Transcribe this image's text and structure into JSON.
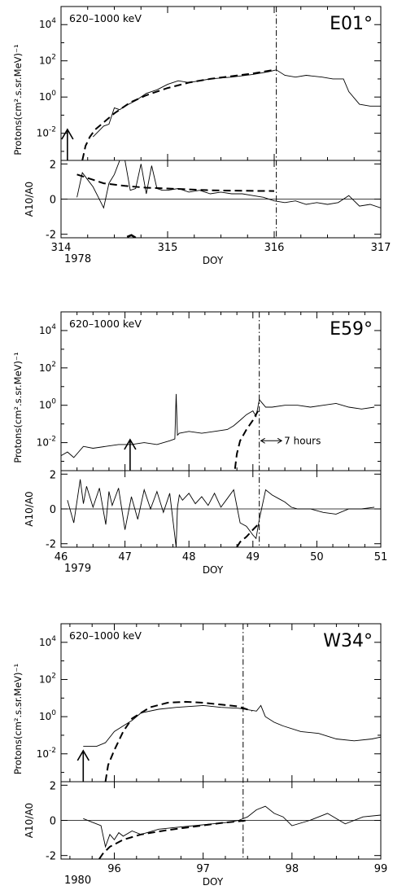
{
  "chart_data": [
    {
      "type": "line",
      "energy_label": "620–1000 keV",
      "location_label": "E01°",
      "ylabel_top": "Protons(cm².s.sr.MeV)⁻¹",
      "ylabel_bottom": "A10/A0",
      "xlabel": "DOY",
      "year_label": "1978",
      "xlim": [
        314,
        317
      ],
      "xticks": [
        "314",
        "315",
        "316",
        "317"
      ],
      "ylim_top_log10": [
        -3.5,
        5
      ],
      "yticks_top": [
        {
          "base": "10",
          "exp": "4",
          "log": 4
        },
        {
          "base": "10",
          "exp": "2",
          "log": 2
        },
        {
          "base": "10",
          "exp": "0",
          "log": 0
        },
        {
          "base": "10",
          "exp": "-2",
          "log": -2
        }
      ],
      "ylim_bottom": [
        -2.2,
        2.2
      ],
      "yticks_bottom": [
        "2",
        "0",
        "-2"
      ],
      "arrow_x": 314.06,
      "vline_x": 316.02,
      "observed_top": {
        "x": [
          314.3,
          314.35,
          314.4,
          314.45,
          314.5,
          314.55,
          314.6,
          314.7,
          314.8,
          314.9,
          315.0,
          315.1,
          315.2,
          315.4,
          315.6,
          315.8,
          315.95,
          316.02,
          316.1,
          316.2,
          316.3,
          316.45,
          316.55,
          316.65,
          316.7,
          316.8,
          316.9,
          317.0
        ],
        "y_log10": [
          -2.2,
          -1.9,
          -1.6,
          -1.5,
          -0.6,
          -0.7,
          -0.5,
          -0.2,
          0.2,
          0.4,
          0.7,
          0.9,
          0.8,
          1.0,
          1.1,
          1.25,
          1.4,
          1.5,
          1.2,
          1.1,
          1.2,
          1.1,
          1.0,
          1.0,
          0.3,
          -0.4,
          -0.5,
          -0.5
        ]
      },
      "model_top": {
        "x": [
          314.2,
          314.23,
          314.27,
          314.32,
          314.4,
          314.5,
          314.65,
          314.8,
          315.0,
          315.2,
          315.4,
          315.6,
          315.8,
          316.0
        ],
        "y_log10": [
          -3.5,
          -2.7,
          -2.2,
          -1.8,
          -1.4,
          -0.9,
          -0.3,
          0.1,
          0.5,
          0.8,
          1.0,
          1.15,
          1.3,
          1.5
        ]
      },
      "observed_bottom": {
        "x": [
          314.15,
          314.2,
          314.25,
          314.3,
          314.35,
          314.4,
          314.45,
          314.5,
          314.55,
          314.6,
          314.65,
          314.7,
          314.75,
          314.8,
          314.85,
          314.9,
          314.95,
          315.0,
          315.1,
          315.2,
          315.3,
          315.4,
          315.5,
          315.6,
          315.7,
          315.8,
          315.9,
          316.0,
          316.1,
          316.2,
          316.3,
          316.4,
          316.5,
          316.6,
          316.7,
          316.8,
          316.9,
          317.0
        ],
        "y": [
          0.1,
          1.5,
          1.1,
          0.7,
          0.1,
          -0.5,
          0.9,
          1.4,
          2.2,
          2.2,
          0.5,
          0.6,
          2.0,
          0.3,
          1.9,
          0.6,
          0.5,
          0.5,
          0.6,
          0.4,
          0.5,
          0.3,
          0.4,
          0.3,
          0.3,
          0.2,
          0.1,
          -0.1,
          -0.2,
          -0.1,
          -0.3,
          -0.2,
          -0.3,
          -0.2,
          0.2,
          -0.4,
          -0.3,
          -0.5
        ]
      },
      "model_bottom": {
        "x": [
          314.15,
          314.25,
          314.4,
          314.6,
          314.8,
          315.0,
          315.2,
          315.4,
          315.6,
          315.8,
          316.0
        ],
        "y": [
          1.4,
          1.2,
          0.9,
          0.75,
          0.65,
          0.6,
          0.55,
          0.5,
          0.48,
          0.47,
          0.46
        ]
      },
      "model_bottom_low": {
        "x": [
          314.62,
          314.66,
          314.7
        ],
        "y": [
          -2.15,
          -2.05,
          -2.2
        ]
      }
    },
    {
      "type": "line",
      "energy_label": "620–1000 keV",
      "location_label": "E59°",
      "ylabel_top": "Protons(cm².s.sr.MeV)⁻¹",
      "ylabel_bottom": "A10/A0",
      "xlabel": "DOY",
      "year_label": "1979",
      "xlim": [
        46,
        51
      ],
      "xticks": [
        "46",
        "47",
        "48",
        "49",
        "50",
        "51"
      ],
      "ylim_top_log10": [
        -3.5,
        5
      ],
      "yticks_top": [
        {
          "base": "10",
          "exp": "4",
          "log": 4
        },
        {
          "base": "10",
          "exp": "2",
          "log": 2
        },
        {
          "base": "10",
          "exp": "0",
          "log": 0
        },
        {
          "base": "10",
          "exp": "-2",
          "log": -2
        }
      ],
      "ylim_bottom": [
        -2.2,
        2.2
      ],
      "yticks_bottom": [
        "2",
        "0",
        "-2"
      ],
      "arrow_x": 47.08,
      "vline_x": 49.1,
      "annotation": "7 hours",
      "annotation_x": [
        49.1,
        49.45
      ],
      "observed_top": {
        "x": [
          46.0,
          46.1,
          46.2,
          46.35,
          46.5,
          46.7,
          46.9,
          47.1,
          47.3,
          47.5,
          47.7,
          47.78,
          47.8,
          47.82,
          47.85,
          48.0,
          48.2,
          48.4,
          48.6,
          48.7,
          48.8,
          48.9,
          49.0,
          49.05,
          49.1,
          49.2,
          49.3,
          49.5,
          49.7,
          49.9,
          50.1,
          50.3,
          50.5,
          50.7,
          50.9
        ],
        "y_log10": [
          -2.7,
          -2.5,
          -2.8,
          -2.2,
          -2.3,
          -2.2,
          -2.1,
          -2.1,
          -2.0,
          -2.1,
          -1.9,
          -1.8,
          0.6,
          -1.6,
          -1.5,
          -1.4,
          -1.5,
          -1.4,
          -1.3,
          -1.1,
          -0.8,
          -0.5,
          -0.3,
          -0.6,
          0.3,
          -0.1,
          -0.1,
          0.0,
          0.0,
          -0.1,
          0.0,
          0.1,
          -0.1,
          -0.2,
          -0.1
        ]
      },
      "model_top": {
        "x": [
          48.72,
          48.75,
          48.8,
          48.9,
          49.0,
          49.08
        ],
        "y_log10": [
          -3.4,
          -2.6,
          -1.9,
          -1.3,
          -0.8,
          -0.3
        ]
      },
      "observed_bottom": {
        "x": [
          46.1,
          46.2,
          46.3,
          46.35,
          46.4,
          46.5,
          46.6,
          46.7,
          46.75,
          46.8,
          46.9,
          47.0,
          47.1,
          47.2,
          47.3,
          47.4,
          47.5,
          47.6,
          47.7,
          47.8,
          47.82,
          47.85,
          47.9,
          48.0,
          48.1,
          48.2,
          48.3,
          48.4,
          48.5,
          48.6,
          48.7,
          48.8,
          48.9,
          49.0,
          49.05,
          49.1,
          49.2,
          49.3,
          49.4,
          49.5,
          49.6,
          49.7,
          49.9,
          50.1,
          50.3,
          50.5,
          50.7,
          50.9
        ],
        "y": [
          0.5,
          -0.8,
          1.7,
          0.3,
          1.3,
          0.1,
          1.2,
          -0.9,
          1.0,
          0.2,
          1.2,
          -1.2,
          0.7,
          -0.6,
          1.1,
          0.0,
          1.0,
          -0.2,
          0.9,
          -2.2,
          0.1,
          0.8,
          0.5,
          0.9,
          0.3,
          0.7,
          0.2,
          0.9,
          0.1,
          0.6,
          1.1,
          -0.8,
          -1.0,
          -1.5,
          -1.7,
          -0.6,
          1.1,
          0.8,
          0.6,
          0.4,
          0.1,
          0.0,
          0.0,
          -0.2,
          -0.3,
          0.0,
          0.0,
          0.1
        ]
      },
      "model_bottom": {
        "x": [
          48.75,
          48.8,
          48.9,
          49.0,
          49.08
        ],
        "y": [
          -2.2,
          -1.9,
          -1.6,
          -1.2,
          -0.9
        ]
      },
      "model_bottom_low": {
        "x": [],
        "y": []
      }
    },
    {
      "type": "line",
      "energy_label": "620–1000 keV",
      "location_label": "W34°",
      "ylabel_top": "Protons(cm².s.sr.MeV)⁻¹",
      "ylabel_bottom": "A10/A0",
      "xlabel": "DOY",
      "year_label": "1980",
      "xlim": [
        95.4,
        99
      ],
      "xticks": [
        "96",
        "97",
        "98",
        "99"
      ],
      "xtick_values": [
        96,
        97,
        98,
        99
      ],
      "ylim_top_log10": [
        -3.5,
        5
      ],
      "yticks_top": [
        {
          "base": "10",
          "exp": "4",
          "log": 4
        },
        {
          "base": "10",
          "exp": "2",
          "log": 2
        },
        {
          "base": "10",
          "exp": "0",
          "log": 0
        },
        {
          "base": "10",
          "exp": "-2",
          "log": -2
        }
      ],
      "ylim_bottom": [
        -2.2,
        2.2
      ],
      "yticks_bottom": [
        "2",
        "0",
        "-2"
      ],
      "arrow_x": 95.65,
      "vline_x": 97.45,
      "observed_top": {
        "x": [
          95.65,
          95.8,
          95.9,
          96.0,
          96.1,
          96.2,
          96.3,
          96.5,
          96.7,
          97.0,
          97.2,
          97.4,
          97.6,
          97.65,
          97.7,
          97.8,
          97.9,
          98.1,
          98.3,
          98.5,
          98.7,
          98.9,
          99.0
        ],
        "y_log10": [
          -1.6,
          -1.6,
          -1.4,
          -0.8,
          -0.5,
          -0.2,
          0.2,
          0.4,
          0.5,
          0.6,
          0.5,
          0.45,
          0.3,
          0.6,
          0.0,
          -0.3,
          -0.5,
          -0.8,
          -0.9,
          -1.2,
          -1.3,
          -1.2,
          -1.1
        ]
      },
      "model_top": {
        "x": [
          95.9,
          95.93,
          96.0,
          96.1,
          96.2,
          96.4,
          96.6,
          96.8,
          97.0,
          97.2,
          97.4,
          97.55
        ],
        "y_log10": [
          -3.5,
          -2.6,
          -1.8,
          -0.8,
          -0.1,
          0.5,
          0.75,
          0.8,
          0.75,
          0.65,
          0.55,
          0.3
        ]
      },
      "observed_bottom": {
        "x": [
          95.65,
          95.75,
          95.85,
          95.9,
          95.95,
          96.0,
          96.05,
          96.1,
          96.2,
          96.3,
          96.5,
          96.7,
          96.9,
          97.1,
          97.3,
          97.4,
          97.5,
          97.6,
          97.7,
          97.8,
          97.9,
          98.0,
          98.2,
          98.4,
          98.6,
          98.8,
          99.0
        ],
        "y": [
          0.1,
          -0.1,
          -0.3,
          -1.5,
          -0.8,
          -1.1,
          -0.7,
          -0.9,
          -0.6,
          -0.8,
          -0.5,
          -0.4,
          -0.3,
          -0.2,
          -0.1,
          0.0,
          0.2,
          0.6,
          0.8,
          0.4,
          0.2,
          -0.3,
          0.0,
          0.4,
          -0.2,
          0.2,
          0.3
        ]
      },
      "model_bottom": {
        "x": [
          95.83,
          95.87,
          95.95,
          96.1,
          96.3,
          96.6,
          96.9,
          97.2,
          97.5
        ],
        "y": [
          -2.2,
          -1.9,
          -1.5,
          -1.1,
          -0.8,
          -0.55,
          -0.35,
          -0.15,
          0.0
        ]
      },
      "model_bottom_low": {
        "x": [],
        "y": []
      }
    }
  ]
}
